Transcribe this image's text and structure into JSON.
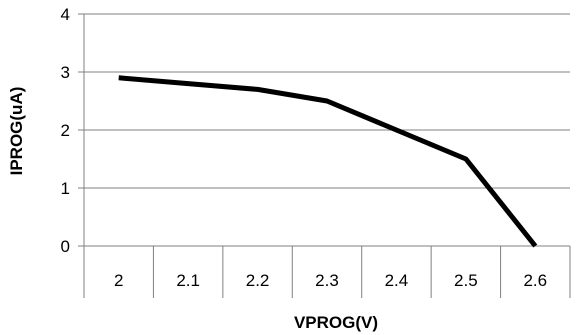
{
  "chart_data": {
    "type": "line",
    "title": "",
    "xlabel": "VPROG(V)",
    "ylabel": "IPROG(uA)",
    "categories": [
      "2",
      "2.1",
      "2.2",
      "2.3",
      "2.4",
      "2.5",
      "2.6"
    ],
    "yticks": [
      "0",
      "1",
      "2",
      "3",
      "4"
    ],
    "ylim": [
      0,
      4
    ],
    "grid": true,
    "legend": "none",
    "series": [
      {
        "values": [
          2.9,
          2.8,
          2.7,
          2.5,
          2.0,
          1.5,
          0.0
        ],
        "color": "#000000"
      }
    ]
  }
}
